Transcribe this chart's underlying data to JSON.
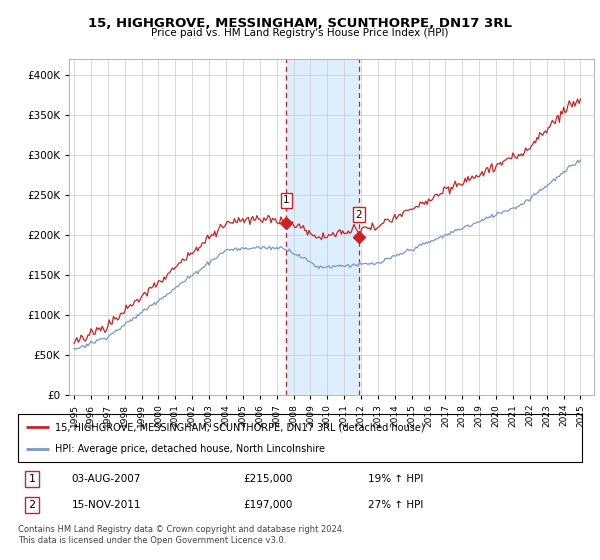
{
  "title": "15, HIGHGROVE, MESSINGHAM, SCUNTHORPE, DN17 3RL",
  "subtitle": "Price paid vs. HM Land Registry's House Price Index (HPI)",
  "legend_line1": "15, HIGHGROVE, MESSINGHAM, SCUNTHORPE, DN17 3RL (detached house)",
  "legend_line2": "HPI: Average price, detached house, North Lincolnshire",
  "sale1_date": "03-AUG-2007",
  "sale1_price": "£215,000",
  "sale1_hpi": "19% ↑ HPI",
  "sale2_date": "15-NOV-2011",
  "sale2_price": "£197,000",
  "sale2_hpi": "27% ↑ HPI",
  "footer": "Contains HM Land Registry data © Crown copyright and database right 2024.\nThis data is licensed under the Open Government Licence v3.0.",
  "red_color": "#cc2222",
  "blue_color": "#7799cc",
  "shade_color": "#ddeeff",
  "marker1_x": 2007.58,
  "marker2_x": 2011.88,
  "sale1_y": 215000,
  "sale2_y": 197000,
  "hpi_at_sale1": 180670,
  "hpi_at_sale2": 155118,
  "ylim_max": 420000,
  "xlim_start": 1994.7,
  "xlim_end": 2025.8,
  "ytick_step": 50000,
  "x_ticks": [
    1995,
    1996,
    1997,
    1998,
    1999,
    2000,
    2001,
    2002,
    2003,
    2004,
    2005,
    2006,
    2007,
    2008,
    2009,
    2010,
    2011,
    2012,
    2013,
    2014,
    2015,
    2016,
    2017,
    2018,
    2019,
    2020,
    2021,
    2022,
    2023,
    2024,
    2025
  ]
}
